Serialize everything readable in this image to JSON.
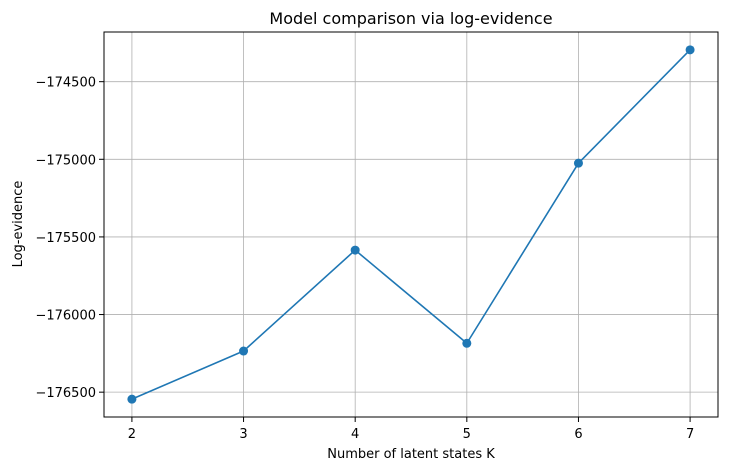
{
  "chart_data": {
    "type": "line",
    "title": "Model comparison via log-evidence",
    "xlabel": "Number of latent states K",
    "ylabel": "Log-evidence",
    "x": [
      2,
      3,
      4,
      5,
      6,
      7
    ],
    "series": [
      {
        "values": [
          -176545,
          -176235,
          -175585,
          -176185,
          -175025,
          -174295
        ],
        "color": "#1f77b4",
        "marker": "circle"
      }
    ],
    "xticks": [
      2,
      3,
      4,
      5,
      6,
      7
    ],
    "yticks": [
      -176500,
      -176000,
      -175500,
      -175000,
      -174500
    ],
    "ytick_labels": [
      "−176500",
      "−176000",
      "−175500",
      "−175000",
      "−174500"
    ],
    "xlim": [
      1.75,
      7.25
    ],
    "ylim": [
      -176660,
      -174180
    ],
    "grid": true
  }
}
